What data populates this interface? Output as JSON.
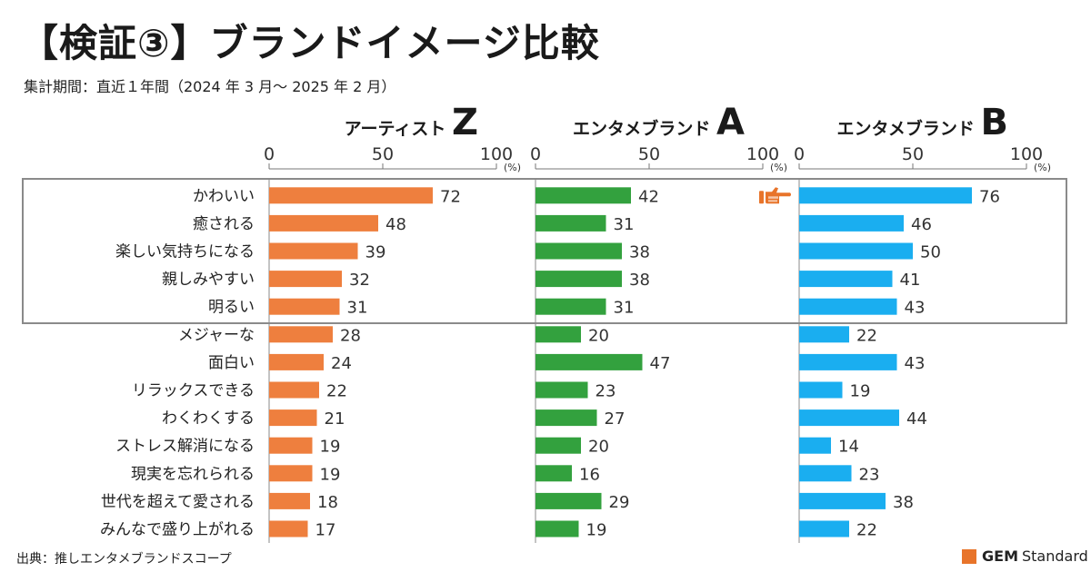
{
  "title": "【検証③】ブランドイメージ比較",
  "subtitle": "集計期間：直近１年間（2024 年 3 月～ 2025 年 2 月）",
  "source": "出典：推しエンタメブランドスコープ",
  "brand": {
    "strong": "GEM",
    "rest": "Standard"
  },
  "colors": {
    "artist_z": "#ee7f3e",
    "brand_a": "#33a13e",
    "brand_b": "#1aaef0",
    "highlight_box": "#8a8a8a",
    "pointer": "#e8742a"
  },
  "chart_data": {
    "type": "bar",
    "orientation": "horizontal",
    "unit": "(%)",
    "xlim": [
      0,
      100
    ],
    "xticks": [
      0,
      50,
      100
    ],
    "categories": [
      "かわいい",
      "癒される",
      "楽しい気持ちになる",
      "親しみやすい",
      "明るい",
      "メジャーな",
      "面白い",
      "リラックスできる",
      "わくわくする",
      "ストレス解消になる",
      "現実を忘れられる",
      "世代を超えて愛される",
      "みんなで盛り上がれる"
    ],
    "series": [
      {
        "name_prefix": "アーティスト",
        "name_letter": "Z",
        "color": "#ee7f3e",
        "values": [
          72,
          48,
          39,
          32,
          31,
          28,
          24,
          22,
          21,
          19,
          19,
          18,
          17
        ]
      },
      {
        "name_prefix": "エンタメブランド",
        "name_letter": "A",
        "color": "#33a13e",
        "values": [
          42,
          31,
          38,
          38,
          31,
          20,
          47,
          23,
          27,
          20,
          16,
          29,
          19
        ]
      },
      {
        "name_prefix": "エンタメブランド",
        "name_letter": "B",
        "color": "#1aaef0",
        "values": [
          76,
          46,
          50,
          41,
          43,
          22,
          43,
          19,
          44,
          14,
          23,
          38,
          22
        ]
      }
    ],
    "highlight_rows": [
      0,
      4
    ],
    "pointer_icon": "pointing-hand-icon",
    "pointer_target": {
      "series": 2,
      "row": 0
    }
  }
}
